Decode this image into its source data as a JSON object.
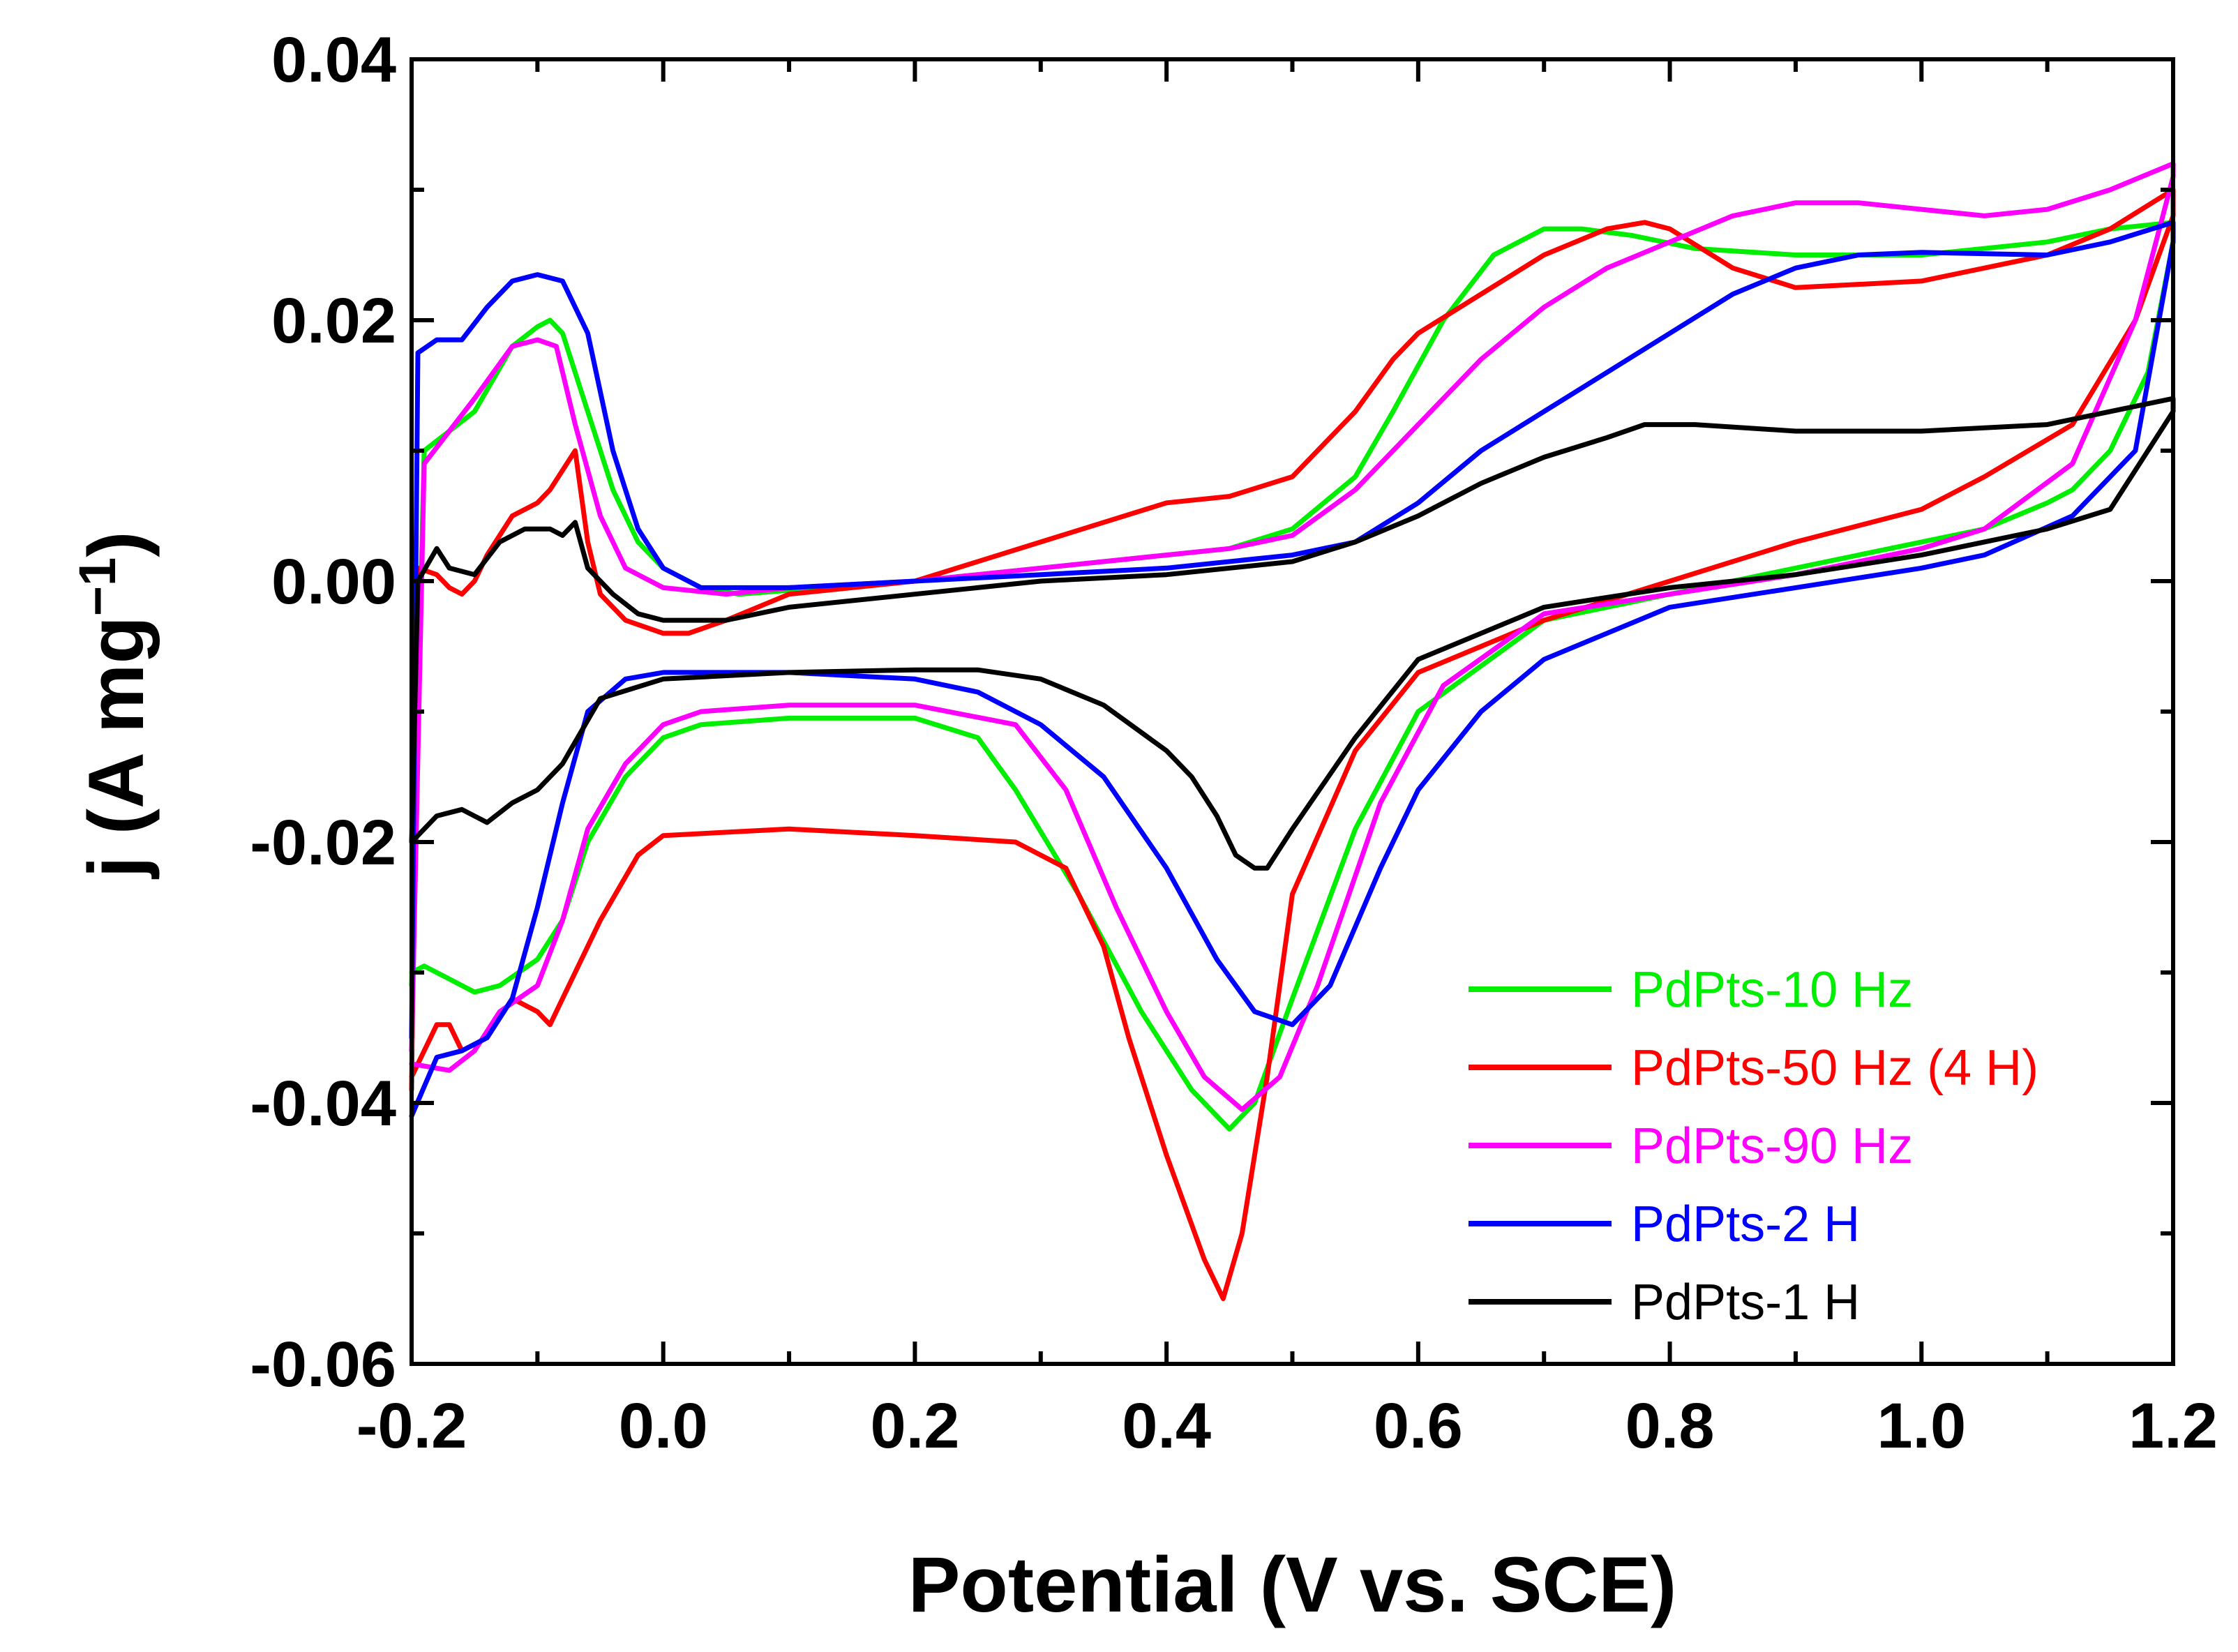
{
  "chart_data": {
    "type": "line",
    "title": "",
    "xlabel": "Potential (V vs. SCE)",
    "ylabel_main": "j (A mg",
    "ylabel_sup": "−1",
    "ylabel_close": ")",
    "xlim": [
      -0.2,
      1.2
    ],
    "ylim": [
      -0.06,
      0.04
    ],
    "xticks": [
      -0.2,
      0.0,
      0.2,
      0.4,
      0.6,
      0.8,
      1.0,
      1.2
    ],
    "xtick_labels": [
      "-0.2",
      "0.0",
      "0.2",
      "0.4",
      "0.6",
      "0.8",
      "1.0",
      "1.2"
    ],
    "yticks": [
      -0.06,
      -0.04,
      -0.02,
      0.0,
      0.02,
      0.04
    ],
    "ytick_labels": [
      "-0.06",
      "-0.04",
      "-0.02",
      "0.00",
      "0.02",
      "0.04"
    ],
    "grid": false,
    "legend_position": "bottom-right",
    "series": [
      {
        "name": "PdPts-10 Hz",
        "color": "#00ee00",
        "x": [
          -0.2,
          -0.19,
          -0.15,
          -0.12,
          -0.1,
          -0.09,
          -0.08,
          -0.06,
          -0.04,
          -0.02,
          0.0,
          0.03,
          0.06,
          0.1,
          0.2,
          0.3,
          0.4,
          0.45,
          0.5,
          0.55,
          0.58,
          0.62,
          0.66,
          0.7,
          0.73,
          0.77,
          0.82,
          0.9,
          1.0,
          1.1,
          1.15,
          1.2,
          1.2,
          1.18,
          1.15,
          1.12,
          1.1,
          1.05,
          1.0,
          0.9,
          0.8,
          0.7,
          0.6,
          0.55,
          0.5,
          0.47,
          0.45,
          0.42,
          0.38,
          0.33,
          0.28,
          0.25,
          0.2,
          0.1,
          0.03,
          0.0,
          -0.03,
          -0.06,
          -0.08,
          -0.1,
          -0.13,
          -0.15,
          -0.17,
          -0.19,
          -0.2
        ],
        "y": [
          -0.031,
          0.01,
          0.013,
          0.018,
          0.0195,
          0.02,
          0.019,
          0.013,
          0.007,
          0.003,
          0.001,
          -0.0005,
          -0.001,
          -0.0007,
          0.0,
          0.001,
          0.002,
          0.0025,
          0.004,
          0.008,
          0.013,
          0.02,
          0.025,
          0.027,
          0.027,
          0.0265,
          0.0255,
          0.025,
          0.025,
          0.026,
          0.027,
          0.0275,
          0.026,
          0.016,
          0.01,
          0.007,
          0.006,
          0.004,
          0.003,
          0.001,
          -0.001,
          -0.003,
          -0.01,
          -0.019,
          -0.032,
          -0.04,
          -0.042,
          -0.039,
          -0.033,
          -0.024,
          -0.016,
          -0.012,
          -0.0105,
          -0.0105,
          -0.011,
          -0.012,
          -0.015,
          -0.02,
          -0.026,
          -0.029,
          -0.031,
          -0.0315,
          -0.0305,
          -0.0295,
          -0.03
        ]
      },
      {
        "name": "PdPts-50 Hz (4 H)",
        "color": "#ff0000",
        "x": [
          -0.2,
          -0.195,
          -0.18,
          -0.17,
          -0.16,
          -0.15,
          -0.14,
          -0.12,
          -0.1,
          -0.09,
          -0.07,
          -0.06,
          -0.05,
          -0.03,
          0.0,
          0.02,
          0.05,
          0.1,
          0.2,
          0.3,
          0.35,
          0.4,
          0.45,
          0.5,
          0.55,
          0.58,
          0.6,
          0.65,
          0.7,
          0.75,
          0.78,
          0.8,
          0.85,
          0.9,
          1.0,
          1.1,
          1.15,
          1.2,
          1.2,
          1.17,
          1.12,
          1.05,
          1.0,
          0.9,
          0.8,
          0.7,
          0.6,
          0.55,
          0.5,
          0.48,
          0.46,
          0.445,
          0.43,
          0.4,
          0.37,
          0.35,
          0.32,
          0.28,
          0.2,
          0.1,
          0.0,
          -0.02,
          -0.05,
          -0.08,
          -0.09,
          -0.1,
          -0.12,
          -0.14,
          -0.16,
          -0.17,
          -0.18,
          -0.2
        ],
        "y": [
          -0.039,
          0.001,
          0.0005,
          -0.0005,
          -0.001,
          0.0,
          0.002,
          0.005,
          0.006,
          0.007,
          0.01,
          0.003,
          -0.001,
          -0.003,
          -0.004,
          -0.004,
          -0.003,
          -0.001,
          0.0,
          0.003,
          0.0045,
          0.006,
          0.0065,
          0.008,
          0.013,
          0.017,
          0.019,
          0.022,
          0.025,
          0.027,
          0.0275,
          0.027,
          0.024,
          0.0225,
          0.023,
          0.025,
          0.027,
          0.03,
          0.028,
          0.02,
          0.012,
          0.008,
          0.0055,
          0.003,
          0.0,
          -0.003,
          -0.007,
          -0.013,
          -0.024,
          -0.038,
          -0.05,
          -0.055,
          -0.052,
          -0.044,
          -0.035,
          -0.028,
          -0.022,
          -0.02,
          -0.0195,
          -0.019,
          -0.0195,
          -0.021,
          -0.026,
          -0.032,
          -0.034,
          -0.033,
          -0.032,
          -0.035,
          -0.036,
          -0.034,
          -0.034,
          -0.038
        ]
      },
      {
        "name": "PdPts-90 Hz",
        "color": "#ff00ff",
        "x": [
          -0.2,
          -0.19,
          -0.15,
          -0.12,
          -0.1,
          -0.085,
          -0.07,
          -0.05,
          -0.03,
          0.0,
          0.05,
          0.1,
          0.2,
          0.3,
          0.4,
          0.45,
          0.5,
          0.55,
          0.6,
          0.65,
          0.7,
          0.75,
          0.8,
          0.85,
          0.9,
          0.95,
          1.0,
          1.05,
          1.1,
          1.15,
          1.2,
          1.2,
          1.17,
          1.12,
          1.05,
          1.0,
          0.9,
          0.8,
          0.7,
          0.62,
          0.57,
          0.52,
          0.49,
          0.46,
          0.43,
          0.4,
          0.36,
          0.32,
          0.28,
          0.2,
          0.1,
          0.03,
          0.0,
          -0.03,
          -0.06,
          -0.08,
          -0.1,
          -0.13,
          -0.15,
          -0.17,
          -0.2
        ],
        "y": [
          -0.036,
          0.009,
          0.014,
          0.018,
          0.0185,
          0.018,
          0.012,
          0.005,
          0.001,
          -0.0005,
          -0.001,
          -0.0005,
          0.0,
          0.001,
          0.002,
          0.0025,
          0.0035,
          0.007,
          0.012,
          0.017,
          0.021,
          0.024,
          0.026,
          0.028,
          0.029,
          0.029,
          0.0285,
          0.028,
          0.0285,
          0.03,
          0.032,
          0.031,
          0.02,
          0.009,
          0.004,
          0.0025,
          0.0005,
          -0.001,
          -0.0025,
          -0.008,
          -0.017,
          -0.031,
          -0.038,
          -0.0405,
          -0.038,
          -0.033,
          -0.025,
          -0.016,
          -0.011,
          -0.0095,
          -0.0095,
          -0.01,
          -0.011,
          -0.014,
          -0.019,
          -0.026,
          -0.031,
          -0.033,
          -0.036,
          -0.0375,
          -0.037
        ]
      },
      {
        "name": "PdPts-2 H",
        "color": "#0000ff",
        "x": [
          -0.2,
          -0.195,
          -0.18,
          -0.16,
          -0.14,
          -0.12,
          -0.1,
          -0.08,
          -0.06,
          -0.04,
          -0.02,
          0.0,
          0.03,
          0.07,
          0.1,
          0.2,
          0.3,
          0.4,
          0.5,
          0.55,
          0.6,
          0.65,
          0.7,
          0.75,
          0.8,
          0.85,
          0.9,
          0.95,
          1.0,
          1.1,
          1.15,
          1.2,
          1.2,
          1.17,
          1.12,
          1.05,
          1.0,
          0.9,
          0.8,
          0.7,
          0.65,
          0.6,
          0.57,
          0.53,
          0.5,
          0.47,
          0.44,
          0.4,
          0.35,
          0.3,
          0.25,
          0.2,
          0.1,
          0.05,
          0.0,
          -0.03,
          -0.06,
          -0.08,
          -0.1,
          -0.12,
          -0.14,
          -0.16,
          -0.18,
          -0.2
        ],
        "y": [
          -0.035,
          0.0175,
          0.0185,
          0.0185,
          0.021,
          0.023,
          0.0235,
          0.023,
          0.019,
          0.01,
          0.004,
          0.001,
          -0.0005,
          -0.0005,
          -0.0005,
          0.0,
          0.0005,
          0.001,
          0.002,
          0.003,
          0.006,
          0.01,
          0.013,
          0.016,
          0.019,
          0.022,
          0.024,
          0.025,
          0.0252,
          0.025,
          0.026,
          0.0275,
          0.026,
          0.01,
          0.005,
          0.002,
          0.001,
          -0.0005,
          -0.002,
          -0.006,
          -0.01,
          -0.016,
          -0.022,
          -0.031,
          -0.034,
          -0.033,
          -0.029,
          -0.022,
          -0.015,
          -0.011,
          -0.0085,
          -0.0075,
          -0.007,
          -0.007,
          -0.007,
          -0.0075,
          -0.01,
          -0.017,
          -0.025,
          -0.032,
          -0.035,
          -0.036,
          -0.0365,
          -0.041
        ]
      },
      {
        "name": "PdPts-1 H",
        "color": "#000000",
        "x": [
          -0.2,
          -0.195,
          -0.18,
          -0.17,
          -0.15,
          -0.13,
          -0.11,
          -0.09,
          -0.08,
          -0.07,
          -0.06,
          -0.04,
          -0.02,
          0.0,
          0.05,
          0.1,
          0.2,
          0.3,
          0.4,
          0.5,
          0.55,
          0.6,
          0.65,
          0.7,
          0.75,
          0.78,
          0.82,
          0.9,
          1.0,
          1.1,
          1.2,
          1.2,
          1.15,
          1.1,
          1.0,
          0.9,
          0.8,
          0.7,
          0.6,
          0.55,
          0.5,
          0.48,
          0.47,
          0.455,
          0.44,
          0.42,
          0.4,
          0.35,
          0.3,
          0.25,
          0.2,
          0.1,
          0.0,
          -0.05,
          -0.08,
          -0.1,
          -0.12,
          -0.14,
          -0.16,
          -0.18,
          -0.2
        ],
        "y": [
          -0.02,
          0.0,
          0.0025,
          0.001,
          0.0005,
          0.003,
          0.004,
          0.004,
          0.0035,
          0.0045,
          0.001,
          -0.001,
          -0.0025,
          -0.003,
          -0.003,
          -0.002,
          -0.001,
          0.0,
          0.0005,
          0.0015,
          0.003,
          0.005,
          0.0075,
          0.0095,
          0.011,
          0.012,
          0.012,
          0.0115,
          0.0115,
          0.012,
          0.014,
          0.013,
          0.0055,
          0.004,
          0.002,
          0.0005,
          -0.0005,
          -0.002,
          -0.006,
          -0.012,
          -0.019,
          -0.022,
          -0.022,
          -0.021,
          -0.018,
          -0.015,
          -0.013,
          -0.0095,
          -0.0075,
          -0.0068,
          -0.0068,
          -0.007,
          -0.0075,
          -0.009,
          -0.014,
          -0.016,
          -0.017,
          -0.0185,
          -0.0175,
          -0.018,
          -0.02
        ]
      }
    ]
  }
}
